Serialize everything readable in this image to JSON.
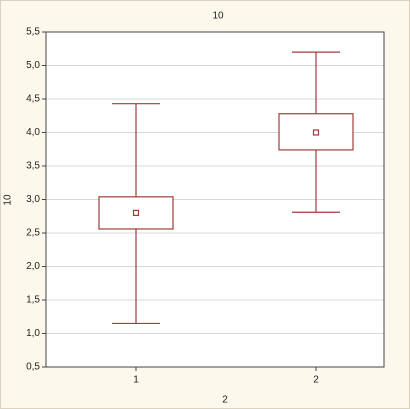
{
  "chart_data": {
    "type": "box",
    "title": "10",
    "x_label": "2",
    "y_label": "10",
    "categories": [
      "1",
      "2"
    ],
    "color": "#a33b3b",
    "boxes": [
      {
        "whisker_low": 1.15,
        "box_low": 2.56,
        "mean": 2.8,
        "box_high": 3.04,
        "whisker_high": 4.43
      },
      {
        "whisker_low": 2.81,
        "box_low": 3.74,
        "mean": 4.0,
        "box_high": 4.28,
        "whisker_high": 5.2
      }
    ],
    "ylim": [
      0.5,
      5.5
    ],
    "yticks": [
      {
        "value": 0.5,
        "label": "0,5"
      },
      {
        "value": 1.0,
        "label": "1,0"
      },
      {
        "value": 1.5,
        "label": "1,5"
      },
      {
        "value": 2.0,
        "label": "2,0"
      },
      {
        "value": 2.5,
        "label": "2,5"
      },
      {
        "value": 3.0,
        "label": "3,0"
      },
      {
        "value": 3.5,
        "label": "3,5"
      },
      {
        "value": 4.0,
        "label": "4,0"
      },
      {
        "value": 4.5,
        "label": "4,5"
      },
      {
        "value": 5.0,
        "label": "5,0"
      },
      {
        "value": 5.5,
        "label": "5,5"
      }
    ],
    "grid": true
  }
}
